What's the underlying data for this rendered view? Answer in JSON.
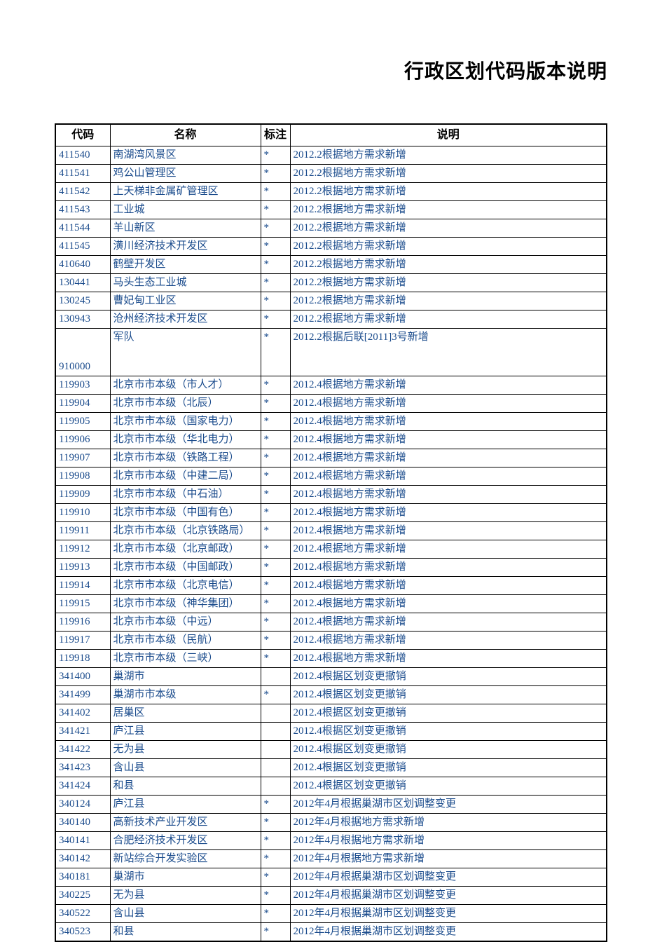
{
  "title": "行政区划代码版本说明",
  "table": {
    "headers": {
      "code": "代码",
      "name": "名称",
      "mark": "标注",
      "desc": "说明"
    },
    "column_widths": {
      "code": 78,
      "name": 215,
      "mark": 42,
      "desc": "auto"
    },
    "colors": {
      "header_text": "#000000",
      "cell_text": "#1a4b8c",
      "border": "#000000",
      "background": "#ffffff"
    },
    "font_sizes": {
      "title": 28,
      "header": 16,
      "cell": 15
    },
    "rows": [
      {
        "code": "411540",
        "name": "南湖湾风景区",
        "mark": "*",
        "desc": "2012.2根据地方需求新增",
        "tall": false
      },
      {
        "code": "411541",
        "name": "鸡公山管理区",
        "mark": "*",
        "desc": "2012.2根据地方需求新增",
        "tall": false
      },
      {
        "code": "411542",
        "name": "上天梯非金属矿管理区",
        "mark": "*",
        "desc": "2012.2根据地方需求新增",
        "tall": false
      },
      {
        "code": "411543",
        "name": "工业城",
        "mark": "*",
        "desc": "2012.2根据地方需求新增",
        "tall": false
      },
      {
        "code": "411544",
        "name": "羊山新区",
        "mark": "*",
        "desc": "2012.2根据地方需求新增",
        "tall": false
      },
      {
        "code": "411545",
        "name": "潢川经济技术开发区",
        "mark": "*",
        "desc": "2012.2根据地方需求新增",
        "tall": false
      },
      {
        "code": "410640",
        "name": "鹤壁开发区",
        "mark": "*",
        "desc": "2012.2根据地方需求新增",
        "tall": false
      },
      {
        "code": "130441",
        "name": "马头生态工业城",
        "mark": "*",
        "desc": "2012.2根据地方需求新增",
        "tall": false
      },
      {
        "code": "130245",
        "name": "曹妃甸工业区",
        "mark": "*",
        "desc": "2012.2根据地方需求新增",
        "tall": false
      },
      {
        "code": "130943",
        "name": "沧州经济技术开发区",
        "mark": "*",
        "desc": "2012.2根据地方需求新增",
        "tall": false
      },
      {
        "code": "910000",
        "name": "军队",
        "mark": "*",
        "desc": "2012.2根据后联[2011]3号新增",
        "tall": true
      },
      {
        "code": "119903",
        "name": "北京市市本级（市人才）",
        "mark": "*",
        "desc": "2012.4根据地方需求新增",
        "tall": false
      },
      {
        "code": "119904",
        "name": "北京市市本级（北辰）",
        "mark": "*",
        "desc": "2012.4根据地方需求新增",
        "tall": false
      },
      {
        "code": "119905",
        "name": "北京市市本级（国家电力）",
        "mark": "*",
        "desc": "2012.4根据地方需求新增",
        "tall": false
      },
      {
        "code": "119906",
        "name": "北京市市本级（华北电力）",
        "mark": "*",
        "desc": "2012.4根据地方需求新增",
        "tall": false
      },
      {
        "code": "119907",
        "name": "北京市市本级（铁路工程）",
        "mark": "*",
        "desc": "2012.4根据地方需求新增",
        "tall": false
      },
      {
        "code": "119908",
        "name": "北京市市本级（中建二局）",
        "mark": "*",
        "desc": "2012.4根据地方需求新增",
        "tall": false
      },
      {
        "code": "119909",
        "name": "北京市市本级（中石油）",
        "mark": "*",
        "desc": "2012.4根据地方需求新增",
        "tall": false
      },
      {
        "code": "119910",
        "name": "北京市市本级（中国有色）",
        "mark": "*",
        "desc": "2012.4根据地方需求新增",
        "tall": false
      },
      {
        "code": "119911",
        "name": "北京市市本级（北京铁路局）",
        "mark": "*",
        "desc": "2012.4根据地方需求新增",
        "tall": false
      },
      {
        "code": "119912",
        "name": "北京市市本级（北京邮政）",
        "mark": "*",
        "desc": "2012.4根据地方需求新增",
        "tall": false
      },
      {
        "code": "119913",
        "name": "北京市市本级（中国邮政）",
        "mark": "*",
        "desc": "2012.4根据地方需求新增",
        "tall": false
      },
      {
        "code": "119914",
        "name": "北京市市本级（北京电信）",
        "mark": "*",
        "desc": "2012.4根据地方需求新增",
        "tall": false
      },
      {
        "code": "119915",
        "name": "北京市市本级（神华集团）",
        "mark": "*",
        "desc": "2012.4根据地方需求新增",
        "tall": false
      },
      {
        "code": "119916",
        "name": "北京市市本级（中远）",
        "mark": "*",
        "desc": "2012.4根据地方需求新增",
        "tall": false
      },
      {
        "code": "119917",
        "name": "北京市市本级（民航）",
        "mark": "*",
        "desc": "2012.4根据地方需求新增",
        "tall": false
      },
      {
        "code": "119918",
        "name": "北京市市本级（三峡）",
        "mark": "*",
        "desc": "2012.4根据地方需求新增",
        "tall": false
      },
      {
        "code": "341400",
        "name": "巢湖市",
        "mark": "",
        "desc": "2012.4根据区划变更撤销",
        "tall": false
      },
      {
        "code": "341499",
        "name": "巢湖市市本级",
        "mark": "*",
        "desc": "2012.4根据区划变更撤销",
        "tall": false
      },
      {
        "code": "341402",
        "name": "居巢区",
        "mark": "",
        "desc": "2012.4根据区划变更撤销",
        "tall": false
      },
      {
        "code": "341421",
        "name": "庐江县",
        "mark": "",
        "desc": "2012.4根据区划变更撤销",
        "tall": false
      },
      {
        "code": "341422",
        "name": "无为县",
        "mark": "",
        "desc": "2012.4根据区划变更撤销",
        "tall": false
      },
      {
        "code": "341423",
        "name": "含山县",
        "mark": "",
        "desc": "2012.4根据区划变更撤销",
        "tall": false
      },
      {
        "code": "341424",
        "name": "和县",
        "mark": "",
        "desc": "2012.4根据区划变更撤销",
        "tall": false
      },
      {
        "code": "340124",
        "name": "庐江县",
        "mark": "*",
        "desc": "2012年4月根据巢湖市区划调整变更",
        "tall": false
      },
      {
        "code": "340140",
        "name": "高新技术产业开发区",
        "mark": "*",
        "desc": "2012年4月根据地方需求新增",
        "tall": false
      },
      {
        "code": "340141",
        "name": "合肥经济技术开发区",
        "mark": "*",
        "desc": "2012年4月根据地方需求新增",
        "tall": false
      },
      {
        "code": "340142",
        "name": "新站综合开发实验区",
        "mark": "*",
        "desc": "2012年4月根据地方需求新增",
        "tall": false
      },
      {
        "code": "340181",
        "name": "巢湖市",
        "mark": "*",
        "desc": "2012年4月根据巢湖市区划调整变更",
        "tall": false
      },
      {
        "code": "340225",
        "name": "无为县",
        "mark": "*",
        "desc": "2012年4月根据巢湖市区划调整变更",
        "tall": false
      },
      {
        "code": "340522",
        "name": "含山县",
        "mark": "*",
        "desc": "2012年4月根据巢湖市区划调整变更",
        "tall": false
      },
      {
        "code": "340523",
        "name": "和县",
        "mark": "*",
        "desc": "2012年4月根据巢湖市区划调整变更",
        "tall": false
      }
    ]
  }
}
